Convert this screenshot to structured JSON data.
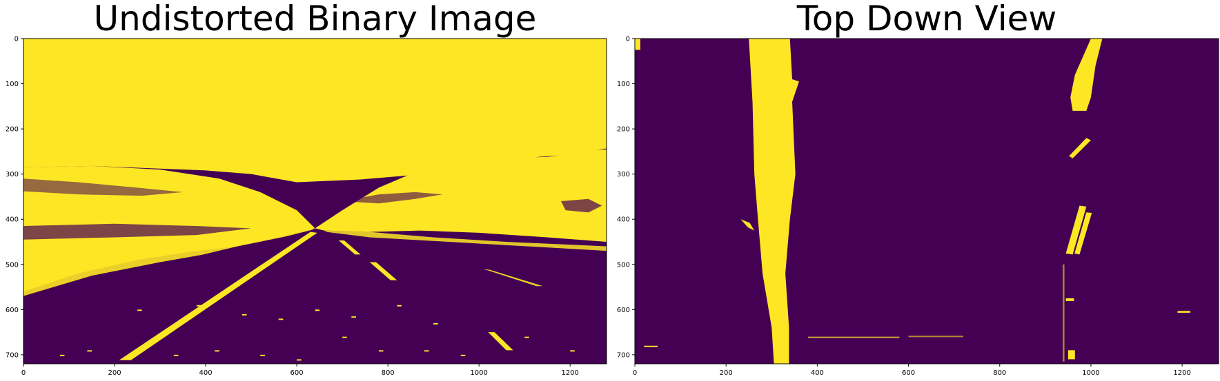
{
  "colors": {
    "background": "#440154",
    "foreground": "#fde725"
  },
  "chart_data": [
    {
      "type": "heatmap",
      "title": "Undistorted Binary Image",
      "xlabel": "",
      "ylabel": "",
      "xlim": [
        0,
        1280
      ],
      "ylim": [
        720,
        0
      ],
      "xticks": [
        0,
        200,
        400,
        600,
        800,
        1000,
        1200
      ],
      "yticks": [
        0,
        100,
        200,
        300,
        400,
        500,
        600,
        700
      ],
      "colormap": "viridis",
      "binary_values": [
        0,
        1
      ],
      "grid": false
    },
    {
      "type": "heatmap",
      "title": "Top Down View",
      "xlabel": "",
      "ylabel": "",
      "xlim": [
        0,
        1280
      ],
      "ylim": [
        720,
        0
      ],
      "xticks": [
        0,
        200,
        400,
        600,
        800,
        1000,
        1200
      ],
      "yticks": [
        0,
        100,
        200,
        300,
        400,
        500,
        600,
        700
      ],
      "colormap": "viridis",
      "binary_values": [
        0,
        1
      ],
      "grid": false
    }
  ]
}
